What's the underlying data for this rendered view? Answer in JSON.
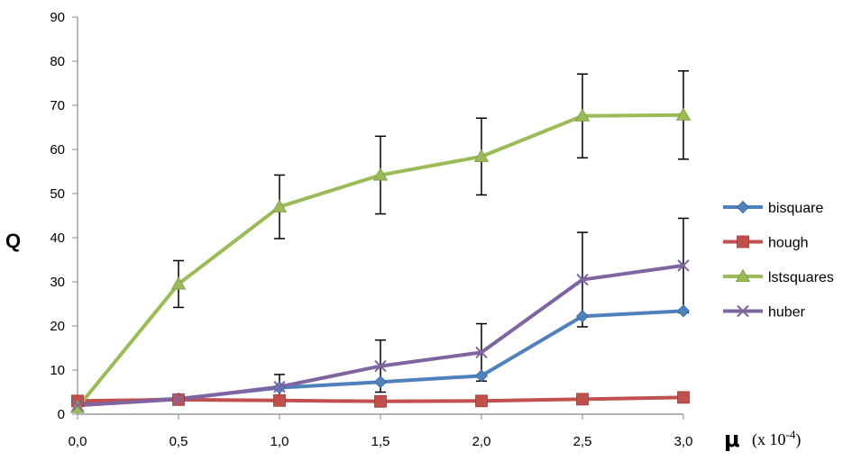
{
  "chart_data": {
    "type": "line",
    "ylabel": "Q",
    "xlabel_symbol": "μ",
    "xlabel_unit_prefix": "(x 10",
    "xlabel_unit_exp": "-4",
    "xlabel_unit_suffix": ")",
    "x": [
      0.0,
      0.5,
      1.0,
      1.5,
      2.0,
      2.5,
      3.0
    ],
    "x_tick_labels": [
      "0,0",
      "0,5",
      "1,0",
      "1,5",
      "2,0",
      "2,5",
      "3,0"
    ],
    "y_ticks": [
      0,
      10,
      20,
      30,
      40,
      50,
      60,
      70,
      80,
      90
    ],
    "ylim": [
      0,
      90
    ],
    "xlim": [
      0,
      3
    ],
    "grid": false,
    "legend_position": "right",
    "series": [
      {
        "name": "bisquare",
        "color": "#4F81BD",
        "marker": "diamond",
        "values": [
          2.5,
          3.5,
          6.0,
          7.3,
          8.7,
          22.2,
          23.4
        ],
        "error": [
          null,
          null,
          null,
          null,
          null,
          null,
          null
        ]
      },
      {
        "name": "hough",
        "color": "#C0504D",
        "marker": "square",
        "values": [
          3.0,
          3.3,
          3.1,
          2.9,
          3.0,
          3.4,
          3.8
        ],
        "error": [
          null,
          null,
          null,
          null,
          null,
          null,
          null
        ]
      },
      {
        "name": "lstsquares",
        "color": "#9BBB59",
        "marker": "triangle",
        "values": [
          1.5,
          29.5,
          47.0,
          54.2,
          58.4,
          67.6,
          67.8
        ],
        "error": [
          null,
          5.3,
          7.2,
          8.8,
          8.7,
          9.5,
          10.0
        ]
      },
      {
        "name": "huber",
        "color": "#8064A2",
        "marker": "x",
        "values": [
          2.0,
          3.4,
          6.2,
          10.9,
          14.0,
          30.5,
          33.7
        ],
        "error": [
          null,
          null,
          2.8,
          5.9,
          6.5,
          10.7,
          10.7
        ]
      }
    ]
  }
}
